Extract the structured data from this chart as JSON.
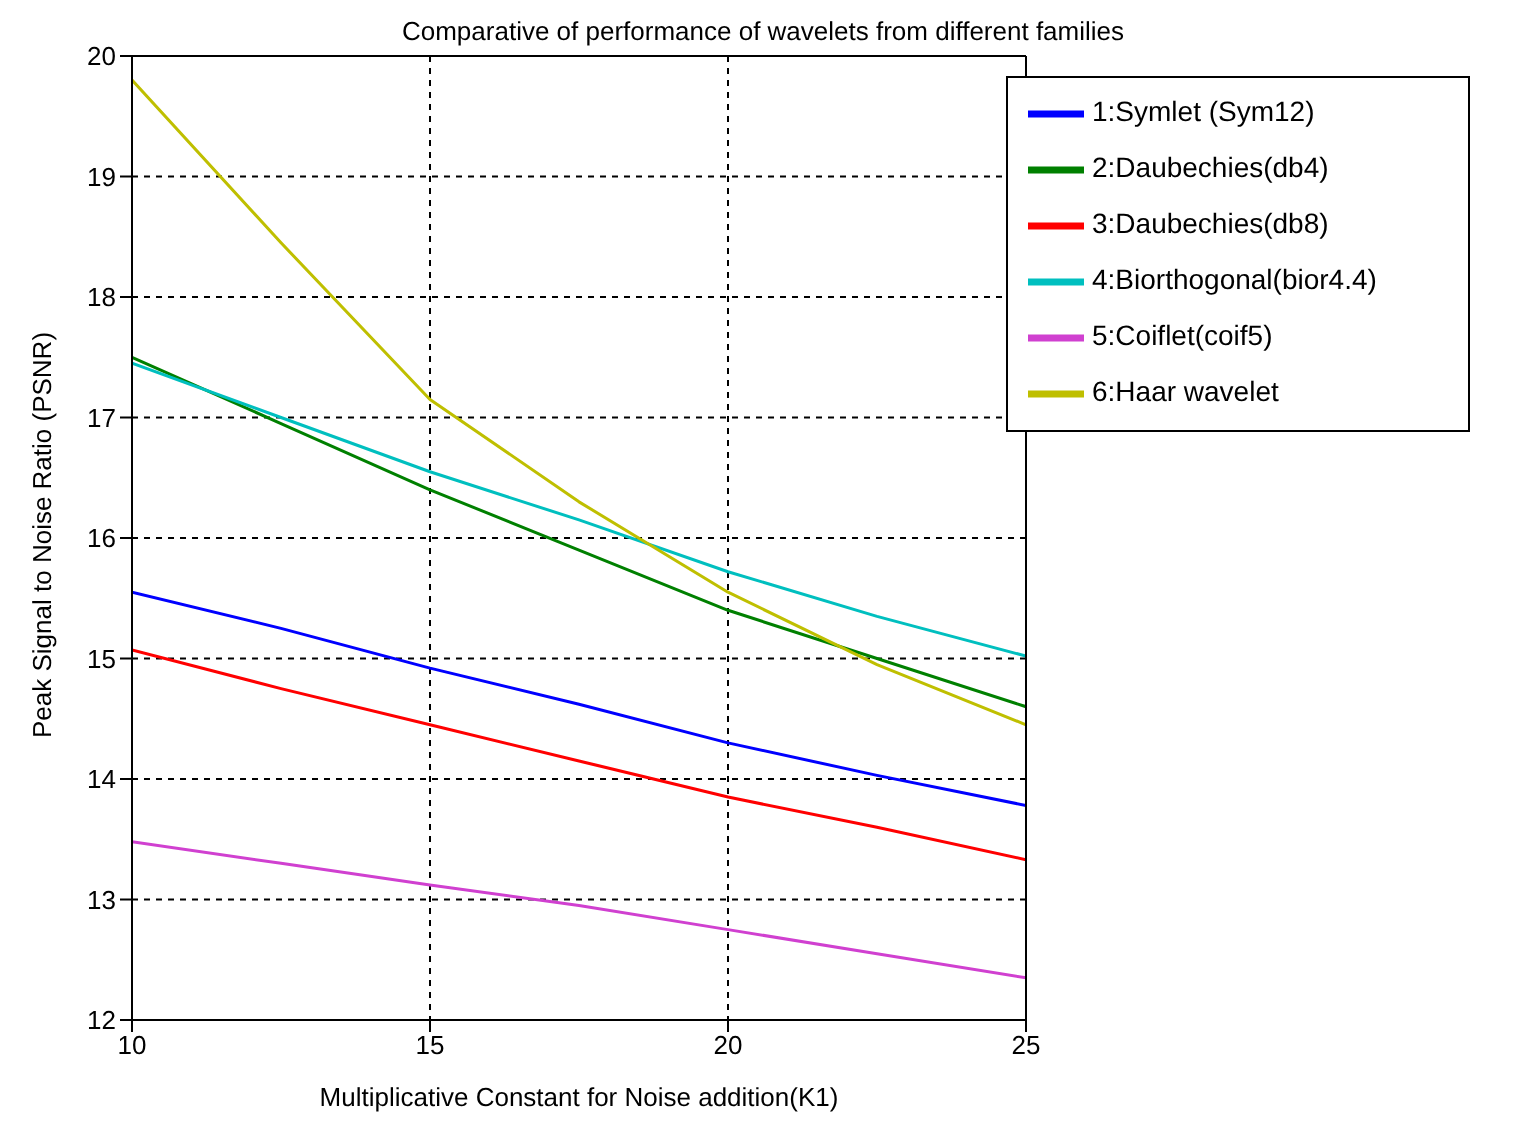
{
  "chart_data": {
    "type": "line",
    "title": "Comparative of performance of wavelets from different families",
    "xlabel": "Multiplicative Constant for Noise addition(K1)",
    "ylabel": "Peak Signal to Noise Ratio (PSNR)",
    "x": [
      10,
      12.5,
      15,
      17.5,
      20,
      22.5,
      25
    ],
    "series": [
      {
        "name": "1:Symlet (Sym12)",
        "color": "#0000ff",
        "values": [
          15.55,
          15.25,
          14.92,
          14.62,
          14.3,
          14.03,
          13.78
        ]
      },
      {
        "name": "2:Daubechies(db4)",
        "color": "#008000",
        "values": [
          17.5,
          16.95,
          16.4,
          15.9,
          15.4,
          15.0,
          14.6
        ]
      },
      {
        "name": "3:Daubechies(db8)",
        "color": "#ff0000",
        "values": [
          15.07,
          14.75,
          14.45,
          14.15,
          13.85,
          13.6,
          13.33
        ]
      },
      {
        "name": "4:Biorthogonal(bior4.4)",
        "color": "#00bfbf",
        "values": [
          17.45,
          17.0,
          16.55,
          16.15,
          15.72,
          15.35,
          15.02
        ]
      },
      {
        "name": "5:Coiflet(coif5)",
        "color": "#d040d0",
        "values": [
          13.48,
          13.3,
          13.12,
          12.95,
          12.75,
          12.55,
          12.35
        ]
      },
      {
        "name": "6:Haar wavelet",
        "color": "#bfbf00",
        "values": [
          19.8,
          18.45,
          17.15,
          16.3,
          15.55,
          14.95,
          14.45
        ]
      }
    ],
    "xlim": [
      10,
      25
    ],
    "xticks": [
      10,
      15,
      20,
      25
    ],
    "ylim": [
      12,
      20
    ],
    "yticks": [
      12,
      13,
      14,
      15,
      16,
      17,
      18,
      19,
      20
    ],
    "grid": true,
    "legend": "top right",
    "marker": "none",
    "line_style": "solid"
  }
}
